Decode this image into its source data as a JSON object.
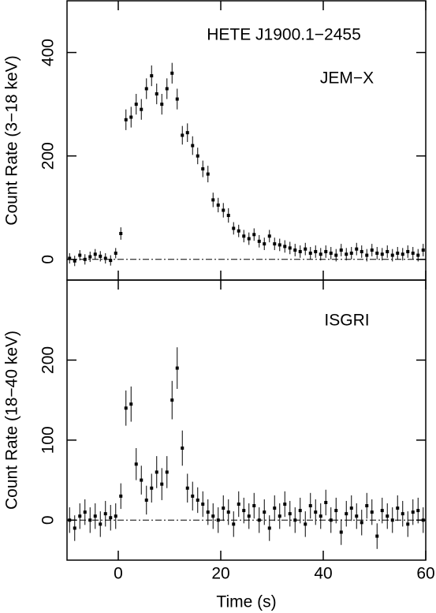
{
  "chart_data": [
    {
      "type": "scatter",
      "y_label": "Count Rate (3−18 keV)",
      "annotations": [
        "HETE J1900.1−2455",
        "JEM−X"
      ],
      "xlim": [
        -10,
        60
      ],
      "xticks": [
        0,
        20,
        40,
        60
      ],
      "ylim": [
        -40,
        500
      ],
      "yticks": [
        0,
        200,
        400
      ],
      "reference_line": 0,
      "color": "#000000",
      "x": [
        -9.5,
        -8.5,
        -7.5,
        -6.5,
        -5.5,
        -4.5,
        -3.5,
        -2.5,
        -1.5,
        -0.5,
        0.5,
        1.5,
        2.5,
        3.5,
        4.5,
        5.5,
        6.5,
        7.5,
        8.5,
        9.5,
        10.5,
        11.5,
        12.5,
        13.5,
        14.5,
        15.5,
        16.5,
        17.5,
        18.5,
        19.5,
        20.5,
        21.5,
        22.5,
        23.5,
        24.5,
        25.5,
        26.5,
        27.5,
        28.5,
        29.5,
        30.5,
        31.5,
        32.5,
        33.5,
        34.5,
        35.5,
        36.5,
        37.5,
        38.5,
        39.5,
        40.5,
        41.5,
        42.5,
        43.5,
        44.5,
        45.5,
        46.5,
        47.5,
        48.5,
        49.5,
        50.5,
        51.5,
        52.5,
        53.5,
        54.5,
        55.5,
        56.5,
        57.5,
        58.5,
        59.5
      ],
      "values": [
        2,
        -3,
        8,
        0,
        5,
        10,
        6,
        2,
        -2,
        12,
        50,
        270,
        275,
        300,
        290,
        330,
        355,
        320,
        300,
        330,
        360,
        310,
        240,
        245,
        220,
        200,
        175,
        165,
        115,
        105,
        95,
        85,
        60,
        55,
        45,
        40,
        48,
        35,
        30,
        45,
        30,
        28,
        25,
        22,
        18,
        15,
        20,
        12,
        15,
        10,
        15,
        12,
        8,
        18,
        10,
        12,
        20,
        15,
        8,
        18,
        12,
        10,
        15,
        8,
        12,
        10,
        15,
        12,
        8,
        18
      ],
      "errors": [
        10,
        10,
        10,
        10,
        10,
        10,
        10,
        10,
        10,
        10,
        12,
        20,
        20,
        20,
        20,
        20,
        20,
        20,
        20,
        20,
        20,
        20,
        18,
        18,
        18,
        16,
        16,
        16,
        14,
        14,
        14,
        14,
        12,
        12,
        12,
        12,
        12,
        12,
        12,
        12,
        12,
        12,
        12,
        12,
        12,
        12,
        12,
        12,
        12,
        12,
        12,
        12,
        12,
        12,
        12,
        12,
        12,
        12,
        12,
        12,
        12,
        12,
        12,
        12,
        12,
        12,
        12,
        12,
        12,
        12
      ]
    },
    {
      "type": "scatter",
      "y_label": "Count Rate (18−40 keV)",
      "x_label": "Time (s)",
      "annotations": [
        "ISGRI"
      ],
      "xlim": [
        -10,
        60
      ],
      "xticks": [
        0,
        20,
        40,
        60
      ],
      "ylim": [
        -50,
        300
      ],
      "yticks": [
        0,
        100,
        200
      ],
      "reference_line": 0,
      "color": "#000000",
      "x": [
        -9.5,
        -8.5,
        -7.5,
        -6.5,
        -5.5,
        -4.5,
        -3.5,
        -2.5,
        -1.5,
        -0.5,
        0.5,
        1.5,
        2.5,
        3.5,
        4.5,
        5.5,
        6.5,
        7.5,
        8.5,
        9.5,
        10.5,
        11.5,
        12.5,
        13.5,
        14.5,
        15.5,
        16.5,
        17.5,
        18.5,
        19.5,
        20.5,
        21.5,
        22.5,
        23.5,
        24.5,
        25.5,
        26.5,
        27.5,
        28.5,
        29.5,
        30.5,
        31.5,
        32.5,
        33.5,
        34.5,
        35.5,
        36.5,
        37.5,
        38.5,
        39.5,
        40.5,
        41.5,
        42.5,
        43.5,
        44.5,
        45.5,
        46.5,
        47.5,
        48.5,
        49.5,
        50.5,
        51.5,
        52.5,
        53.5,
        54.5,
        55.5,
        56.5,
        57.5,
        58.5,
        59.5
      ],
      "values": [
        0,
        -10,
        5,
        10,
        0,
        5,
        -5,
        8,
        3,
        5,
        30,
        140,
        145,
        70,
        50,
        25,
        40,
        60,
        45,
        60,
        150,
        190,
        90,
        40,
        30,
        25,
        20,
        10,
        5,
        0,
        15,
        10,
        -5,
        20,
        12,
        5,
        18,
        0,
        10,
        -10,
        15,
        5,
        20,
        8,
        0,
        12,
        -5,
        18,
        10,
        5,
        22,
        0,
        12,
        -15,
        8,
        15,
        5,
        -3,
        18,
        10,
        -20,
        12,
        5,
        0,
        15,
        8,
        -5,
        10,
        12,
        0
      ],
      "errors": [
        16,
        16,
        16,
        16,
        16,
        16,
        16,
        16,
        16,
        16,
        16,
        22,
        22,
        20,
        18,
        18,
        18,
        20,
        20,
        20,
        24,
        26,
        22,
        18,
        18,
        16,
        16,
        16,
        16,
        16,
        16,
        16,
        16,
        16,
        16,
        16,
        16,
        16,
        16,
        16,
        16,
        16,
        16,
        16,
        16,
        16,
        16,
        16,
        16,
        16,
        16,
        16,
        16,
        16,
        16,
        16,
        16,
        16,
        16,
        16,
        16,
        16,
        16,
        16,
        16,
        16,
        16,
        16,
        16,
        16
      ]
    }
  ]
}
